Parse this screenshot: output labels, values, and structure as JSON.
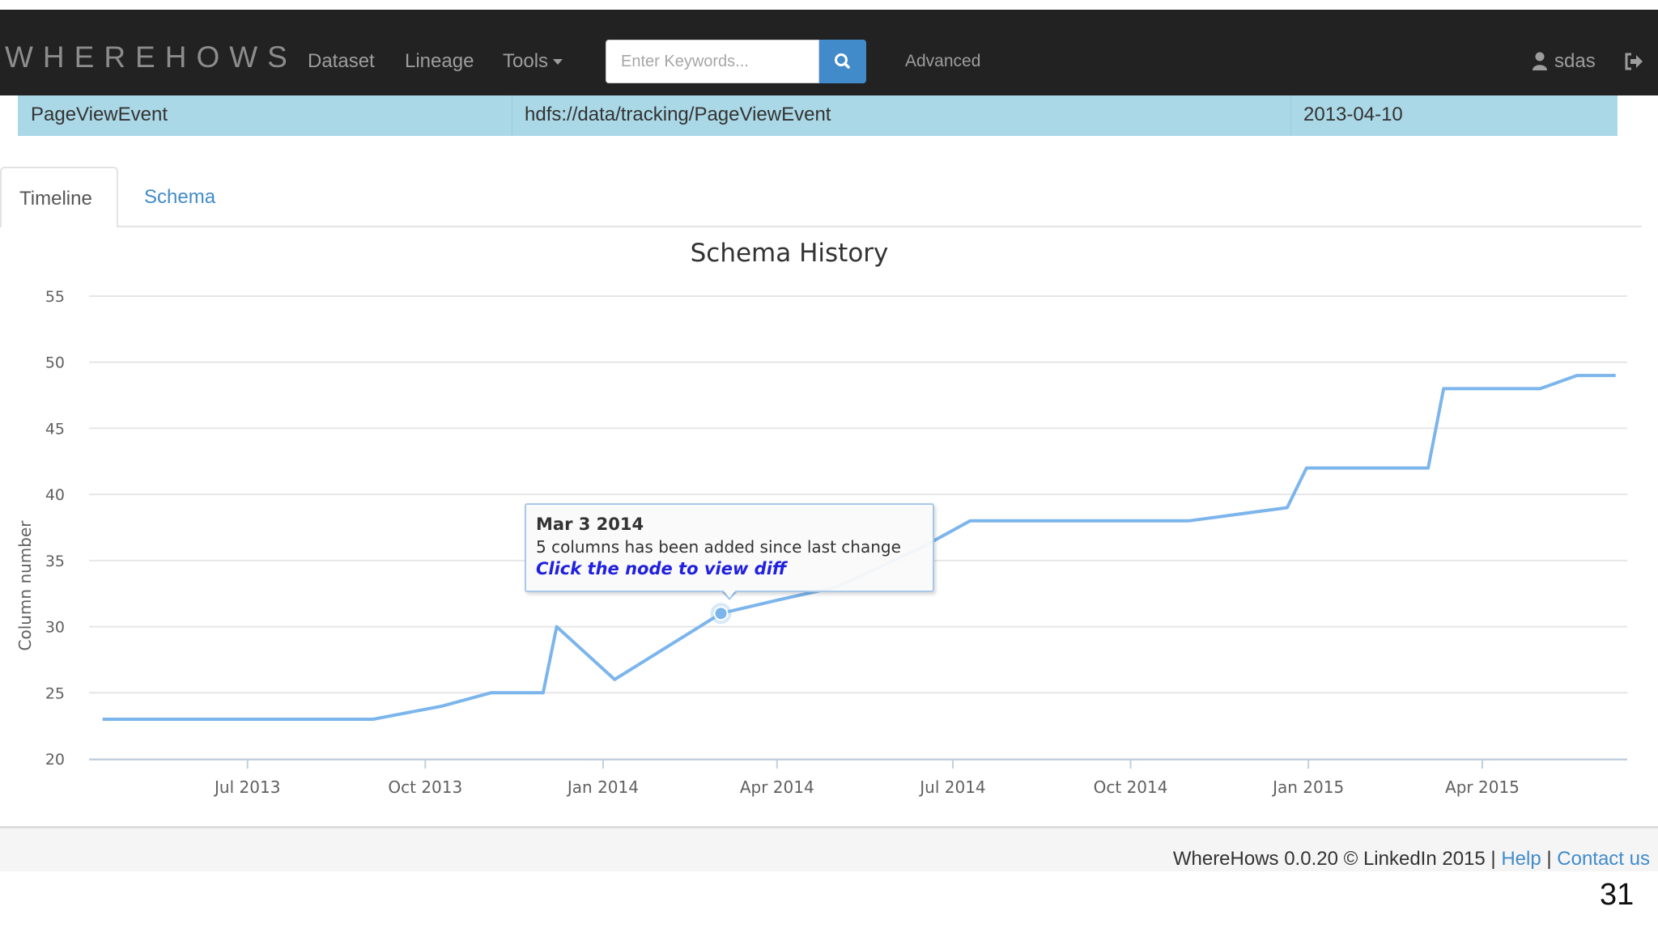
{
  "navbar": {
    "brand": "WHEREHOWS",
    "links": {
      "dataset": "Dataset",
      "lineage": "Lineage",
      "tools": "Tools"
    },
    "search_placeholder": "Enter Keywords...",
    "advanced": "Advanced",
    "user": "sdas"
  },
  "dataset_row": {
    "name": "PageViewEvent",
    "path": "hdfs://data/tracking/PageViewEvent",
    "date": "2013-04-10"
  },
  "tabs": {
    "timeline": "Timeline",
    "schema": "Schema"
  },
  "chart_data": {
    "type": "line",
    "title": "Schema History",
    "ylabel": "Column number",
    "xlabel": "",
    "ylim": [
      20,
      55
    ],
    "yticks": [
      20,
      25,
      30,
      35,
      40,
      45,
      50,
      55
    ],
    "xlim": [
      "2013-04-10",
      "2015-06-15"
    ],
    "xticks": [
      {
        "date": "2013-07-01",
        "label": "Jul 2013"
      },
      {
        "date": "2013-10-01",
        "label": "Oct 2013"
      },
      {
        "date": "2014-01-01",
        "label": "Jan 2014"
      },
      {
        "date": "2014-04-01",
        "label": "Apr 2014"
      },
      {
        "date": "2014-07-01",
        "label": "Jul 2014"
      },
      {
        "date": "2014-10-01",
        "label": "Oct 2014"
      },
      {
        "date": "2015-01-01",
        "label": "Jan 2015"
      },
      {
        "date": "2015-04-01",
        "label": "Apr 2015"
      }
    ],
    "grid": true,
    "legend": "none",
    "series": [
      {
        "color": "#7cb5ec",
        "points": [
          {
            "x": "2013-04-17",
            "y": 23
          },
          {
            "x": "2013-09-04",
            "y": 23
          },
          {
            "x": "2013-10-10",
            "y": 24
          },
          {
            "x": "2013-11-04",
            "y": 25
          },
          {
            "x": "2013-12-01",
            "y": 25
          },
          {
            "x": "2013-12-08",
            "y": 30
          },
          {
            "x": "2014-01-07",
            "y": 26
          },
          {
            "x": "2014-03-03",
            "y": 31
          },
          {
            "x": "2014-04-01",
            "y": 32
          },
          {
            "x": "2014-05-02",
            "y": 33
          },
          {
            "x": "2014-06-15",
            "y": 36
          },
          {
            "x": "2014-07-10",
            "y": 38
          },
          {
            "x": "2014-10-31",
            "y": 38
          },
          {
            "x": "2014-12-21",
            "y": 39
          },
          {
            "x": "2014-12-31",
            "y": 42
          },
          {
            "x": "2015-03-04",
            "y": 42
          },
          {
            "x": "2015-03-12",
            "y": 48
          },
          {
            "x": "2015-05-01",
            "y": 48
          },
          {
            "x": "2015-05-20",
            "y": 49
          },
          {
            "x": "2015-06-09",
            "y": 49
          }
        ]
      }
    ],
    "highlight": {
      "x": "2014-03-03",
      "y": 31,
      "tooltip_date": "Mar 3 2014",
      "tooltip_message": "5 columns has been added since last change",
      "tooltip_link": "Click the node to view diff"
    }
  },
  "footer": {
    "text": "WhereHows 0.0.20 © LinkedIn 2015 |",
    "help": "Help",
    "separator": "|",
    "contact": "Contact us"
  },
  "page_number": "31"
}
